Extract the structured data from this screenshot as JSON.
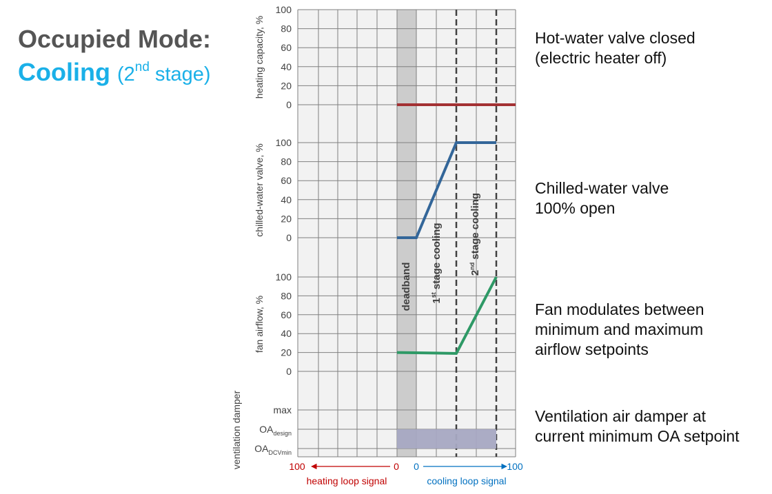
{
  "heading": {
    "title": "Occupied Mode:",
    "mode": "Cooling",
    "stage_open": "(2",
    "stage_sup": "nd",
    "stage_close": " stage)"
  },
  "notes": {
    "hot_water_line1": "Hot-water valve closed",
    "hot_water_line2": "(electric heater off)",
    "chilled_water_line1": "Chilled-water valve",
    "chilled_water_line2": "100% open",
    "fan_line1": "Fan modulates between",
    "fan_line2": "minimum and maximum",
    "fan_line3": "airflow setpoints",
    "damper_line1": "Ventilation air damper at",
    "damper_line2": "current minimum OA setpoint"
  },
  "colors": {
    "heating_line": "#a33133",
    "chilled_line": "#336699",
    "fan_line": "#2e9966",
    "damper_fill": "#a7a8c2",
    "deadband_fill": "#cccccc",
    "plot_bg": "#f2f2f2",
    "heating_signal": "#c00000",
    "cooling_signal": "#0070c0"
  },
  "chart_data": {
    "type": "line",
    "zones": {
      "deadband": "deadband",
      "stage1": {
        "sup": "st",
        "pre": "1",
        "post": " stage cooling"
      },
      "stage2": {
        "sup": "nd",
        "pre": "2",
        "post": " stage cooling"
      }
    },
    "x_axis": {
      "heating_label": "heating loop signal",
      "cooling_label": "cooling loop signal",
      "heating_ticks": [
        "100",
        "0"
      ],
      "cooling_ticks": [
        "0",
        "100"
      ]
    },
    "panels": [
      {
        "id": "heating",
        "ylabel": "heating capacity, %",
        "ticks": [
          "100",
          "80",
          "60",
          "40",
          "20",
          "0"
        ],
        "series": [
          {
            "x": [
              "deadband start",
              "cooling 100"
            ],
            "y": [
              0,
              0
            ]
          }
        ]
      },
      {
        "id": "chilled",
        "ylabel": "chilled-water valve, %",
        "ticks": [
          "100",
          "80",
          "60",
          "40",
          "20",
          "0"
        ],
        "series": [
          {
            "x": [
              "deadband start",
              "deadband end",
              "stage 1 end",
              "stage 2 end"
            ],
            "y": [
              0,
              0,
              100,
              100
            ]
          }
        ]
      },
      {
        "id": "fan",
        "ylabel": "fan airflow, %",
        "ticks": [
          "100",
          "80",
          "60",
          "40",
          "20",
          "0"
        ],
        "series": [
          {
            "x": [
              "deadband start",
              "stage 1 end",
              "stage 2 end"
            ],
            "y": [
              20,
              19,
              100
            ]
          }
        ]
      },
      {
        "id": "damper",
        "ylabel": "ventilation damper",
        "ticks": [
          {
            "main": "max",
            "sub": ""
          },
          {
            "main": "OA",
            "sub": "design"
          },
          {
            "main": "OA",
            "sub": "DCVmin"
          }
        ],
        "band": {
          "from": "OA_DCVmin",
          "to": "OA_design",
          "x": [
            "deadband start",
            "cooling 100"
          ]
        }
      }
    ]
  }
}
